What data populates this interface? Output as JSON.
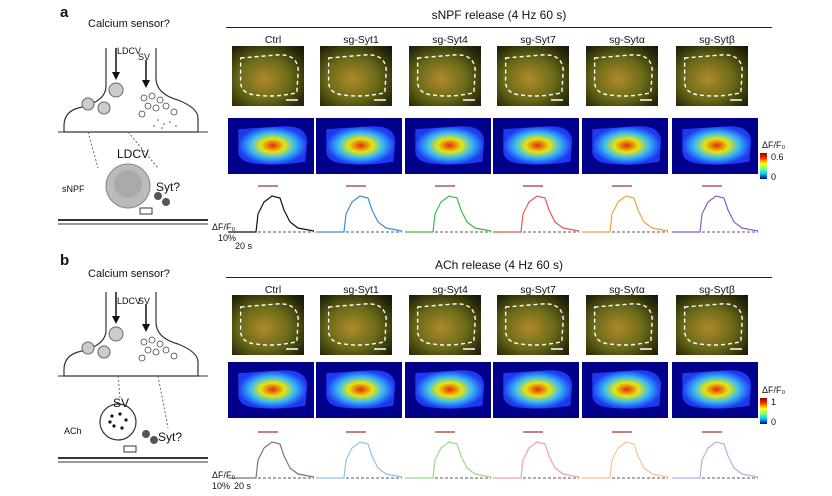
{
  "panels": [
    {
      "letter": "a",
      "title": "sNPF release (4 Hz 60 s)",
      "schematic": {
        "question": "Calcium sensor?",
        "ldcv": "LDCV",
        "sv": "SV",
        "vesicle_big": "LDCV",
        "transmitter": "sNPF",
        "syt": "Syt?"
      },
      "columns": [
        "Ctrl",
        "sg-Syt1",
        "sg-Syt4",
        "sg-Syt7",
        "sg-Sytα",
        "sg-Sytβ"
      ],
      "trace_colors": [
        "#111111",
        "#3b8fd4",
        "#43b649",
        "#e05a5a",
        "#f0a040",
        "#8b5cc6"
      ],
      "colorbar": {
        "label": "ΔF/F₀",
        "max": "0.6",
        "min": "0"
      },
      "scale": {
        "y": "ΔF/F₀",
        "y_value": "10%",
        "x": "20 s"
      }
    },
    {
      "letter": "b",
      "title": "ACh release (4 Hz 60 s)",
      "schematic": {
        "question": "Calcium sensor?",
        "ldcv": "LDCV",
        "sv": "SV",
        "vesicle_big": "SV",
        "transmitter": "ACh",
        "syt": "Syt?"
      },
      "columns": [
        "Ctrl",
        "sg-Syt1",
        "sg-Syt4",
        "sg-Syt7",
        "sg-Sytα",
        "sg-Sytβ"
      ],
      "trace_colors": [
        "#777777",
        "#8ec2ea",
        "#9fd68b",
        "#f0a0a0",
        "#f5c58a",
        "#c3a8e3"
      ],
      "colorbar": {
        "label": "ΔF/F₀",
        "max": "1",
        "min": "0"
      },
      "scale": {
        "y": "ΔF/F₀",
        "y_value": "10%",
        "x": "20 s"
      }
    }
  ]
}
